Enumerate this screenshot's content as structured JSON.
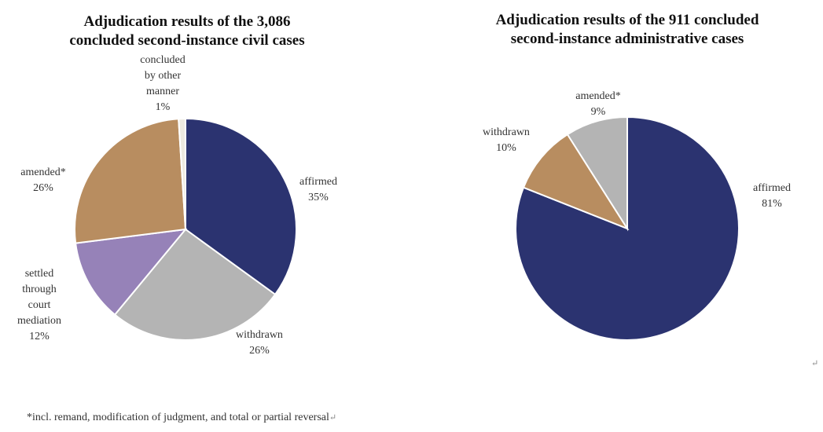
{
  "chart_data": [
    {
      "type": "pie",
      "title": "Adjudication results of the 3,086 concluded second-instance civil cases",
      "title_lines": [
        "Adjudication results of the 3,086",
        "concluded second-instance civil cases"
      ],
      "start": "top",
      "direction": "clockwise",
      "slices": [
        {
          "label": "affirmed",
          "label_lines": [
            "affirmed"
          ],
          "value": 35,
          "display": "35%",
          "color": "#2B3370"
        },
        {
          "label": "withdrawn",
          "label_lines": [
            "withdrawn"
          ],
          "value": 26,
          "display": "26%",
          "color": "#B4B4B4"
        },
        {
          "label": "settled through court mediation",
          "label_lines": [
            "settled",
            "through",
            "court",
            "mediation"
          ],
          "value": 12,
          "display": "12%",
          "color": "#9682B8"
        },
        {
          "label": "amended*",
          "label_lines": [
            "amended*"
          ],
          "value": 26,
          "display": "26%",
          "color": "#B88D60"
        },
        {
          "label": "concluded by other manner",
          "label_lines": [
            "concluded",
            "by other",
            "manner"
          ],
          "value": 1,
          "display": "1%",
          "color": "#EDEAE0"
        }
      ]
    },
    {
      "type": "pie",
      "title": "Adjudication results of the 911 concluded second-instance administrative cases",
      "title_lines": [
        "Adjudication results of the 911 concluded",
        "second-instance administrative cases"
      ],
      "start": "top",
      "direction": "clockwise",
      "slices": [
        {
          "label": "affirmed",
          "label_lines": [
            "affirmed"
          ],
          "value": 81,
          "display": "81%",
          "color": "#2B3370"
        },
        {
          "label": "withdrawn",
          "label_lines": [
            "withdrawn"
          ],
          "value": 10,
          "display": "10%",
          "color": "#B88D60"
        },
        {
          "label": "amended*",
          "label_lines": [
            "amended*"
          ],
          "value": 9,
          "display": "9%",
          "color": "#B4B4B4"
        }
      ]
    }
  ],
  "footnote": "*incl. remand, modification of judgment, and total or partial reversal",
  "paragraph_mark": "↵"
}
